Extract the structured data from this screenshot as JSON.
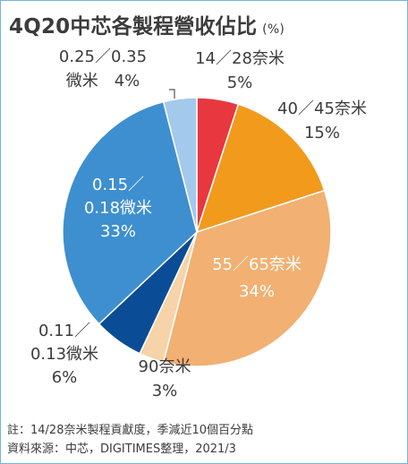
{
  "title": "4Q20中芯各製程營收佔比",
  "title_unit": "(%)",
  "chart_data": {
    "type": "pie",
    "title": "4Q20中芯各製程營收佔比",
    "unit": "(%)",
    "slices": [
      {
        "label_lines": [
          "14／28奈米",
          "5%"
        ],
        "value": 5,
        "color": "#e8373f"
      },
      {
        "label_lines": [
          "40／45奈米",
          "15%"
        ],
        "value": 15,
        "color": "#f29a1c"
      },
      {
        "label_lines": [
          "55／65奈米",
          "34%"
        ],
        "value": 34,
        "color": "#f2b072"
      },
      {
        "label_lines": [
          "90奈米",
          "3%"
        ],
        "value": 3,
        "color": "#f6d3a8"
      },
      {
        "label_lines": [
          "0.11／",
          "0.13微米",
          "6%"
        ],
        "value": 6,
        "color": "#0a4c96"
      },
      {
        "label_lines": [
          "0.15／",
          "0.18微米",
          "33%"
        ],
        "value": 33,
        "color": "#3e8fd0"
      },
      {
        "label_lines": [
          "0.25／0.35",
          "微米　4%"
        ],
        "value": 4,
        "color": "#a3c9ec"
      }
    ]
  },
  "footer": {
    "note": "註：14/28奈米製程貢獻度，季減近10個百分點",
    "source": "資料來源：中芯，DIGITIMES整理，2021/3"
  }
}
